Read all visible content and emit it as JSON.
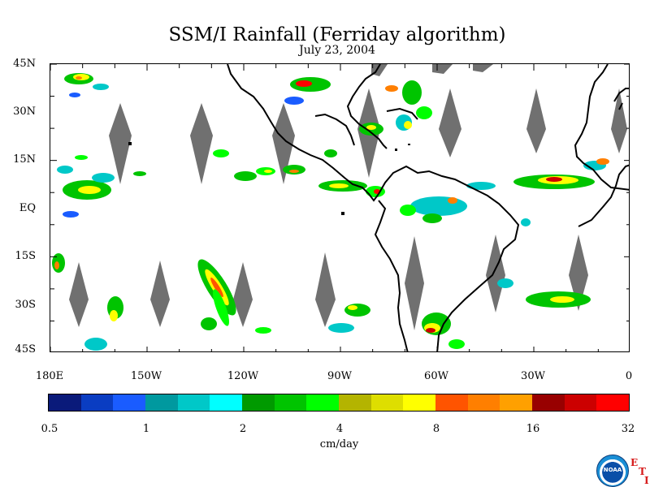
{
  "title": "SSM/I Rainfall (Ferriday algorithm)",
  "date": "July 23, 2004",
  "latitude_labels": [
    "45N",
    "30N",
    "15N",
    "EQ",
    "15S",
    "30S",
    "45S"
  ],
  "longitude_labels": [
    "180E",
    "150W",
    "120W",
    "90W",
    "60W",
    "30W",
    "0"
  ],
  "colorbar": {
    "tick_labels": [
      "0.5",
      "1",
      "2",
      "4",
      "8",
      "16",
      "32"
    ],
    "units": "cm/day",
    "colors": [
      "#0a1a7a",
      "#0a3dc2",
      "#1a5cff",
      "#00999f",
      "#00c8c8",
      "#00ffff",
      "#009a00",
      "#00c400",
      "#00ff00",
      "#b4b400",
      "#dede00",
      "#ffff00",
      "#ff5400",
      "#ff7f00",
      "#ffa000",
      "#980000",
      "#cc0000",
      "#ff0000"
    ]
  },
  "map": {
    "land_outline_color": "#000000",
    "no_data_swath_color": "#707070",
    "background_color": "#ffffff"
  },
  "logo": {
    "name": "noaa-logo",
    "text": "NOAA",
    "side_marks": [
      "E",
      "T",
      "I"
    ]
  }
}
